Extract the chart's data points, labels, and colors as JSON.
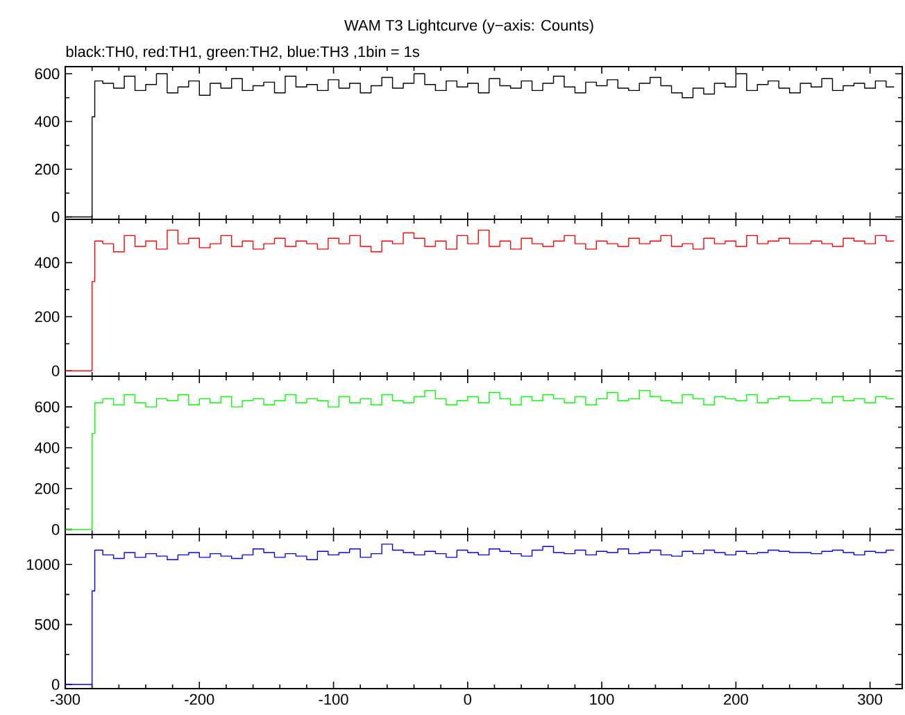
{
  "chart_data": [
    {
      "type": "step",
      "title": "WAM T3 Lightcurve (y−axis: Counts)",
      "subtitle": "black:TH0, red:TH1, green:TH2, blue:TH3 ,1bin = 1s",
      "tick_labels": "y",
      "x": [
        -300,
        -281,
        -280,
        -278,
        -272,
        -264,
        -256,
        -248,
        -240,
        -232,
        -224,
        -216,
        -208,
        -200,
        -192,
        -184,
        -176,
        -168,
        -160,
        -152,
        -144,
        -136,
        -128,
        -120,
        -112,
        -104,
        -96,
        -88,
        -80,
        -72,
        -64,
        -56,
        -48,
        -40,
        -32,
        -24,
        -16,
        -8,
        0,
        8,
        16,
        24,
        32,
        40,
        48,
        56,
        64,
        72,
        80,
        88,
        96,
        104,
        112,
        120,
        128,
        136,
        144,
        152,
        160,
        168,
        176,
        184,
        192,
        200,
        208,
        216,
        224,
        232,
        240,
        248,
        256,
        264,
        272,
        280,
        288,
        296,
        304,
        312,
        318
      ],
      "xlim": [
        -300,
        324
      ],
      "xticks": [
        -300,
        -200,
        -100,
        0,
        100,
        200,
        300
      ],
      "ylim": [
        -10,
        630
      ],
      "yticks": [
        0,
        200,
        400,
        600
      ],
      "series": [
        {
          "color": "#000000",
          "values": [
            0,
            0,
            420,
            570,
            560,
            540,
            590,
            530,
            555,
            600,
            520,
            545,
            570,
            510,
            560,
            540,
            580,
            530,
            550,
            565,
            520,
            590,
            545,
            555,
            530,
            575,
            540,
            560,
            520,
            550,
            585,
            540,
            560,
            600,
            555,
            530,
            570,
            545,
            560,
            520,
            580,
            550,
            540,
            570,
            530,
            560,
            590,
            545,
            520,
            565,
            550,
            575,
            540,
            530,
            560,
            585,
            550,
            520,
            500,
            540,
            515,
            560,
            545,
            600,
            530,
            555,
            570,
            540,
            520,
            560,
            545,
            580,
            530,
            550,
            560,
            540,
            570,
            545,
            545
          ]
        }
      ]
    },
    {
      "type": "step",
      "tick_labels": "y",
      "x": [
        -300,
        -281,
        -280,
        -278,
        -272,
        -264,
        -256,
        -248,
        -240,
        -232,
        -224,
        -216,
        -208,
        -200,
        -192,
        -184,
        -176,
        -168,
        -160,
        -152,
        -144,
        -136,
        -128,
        -120,
        -112,
        -104,
        -96,
        -88,
        -80,
        -72,
        -64,
        -56,
        -48,
        -40,
        -32,
        -24,
        -16,
        -8,
        0,
        8,
        16,
        24,
        32,
        40,
        48,
        56,
        64,
        72,
        80,
        88,
        96,
        104,
        112,
        120,
        128,
        136,
        144,
        152,
        160,
        168,
        176,
        184,
        192,
        200,
        208,
        216,
        224,
        232,
        240,
        248,
        256,
        264,
        272,
        280,
        288,
        296,
        304,
        312,
        318
      ],
      "xlim": [
        -300,
        324
      ],
      "xticks": [
        -300,
        -200,
        -100,
        0,
        100,
        200,
        300
      ],
      "ylim": [
        -20,
        560
      ],
      "yticks": [
        0,
        200,
        400
      ],
      "series": [
        {
          "color": "#ff0000",
          "values": [
            0,
            0,
            330,
            480,
            470,
            440,
            500,
            460,
            480,
            450,
            520,
            470,
            490,
            455,
            470,
            500,
            460,
            480,
            450,
            470,
            490,
            460,
            480,
            470,
            450,
            490,
            470,
            500,
            460,
            440,
            480,
            470,
            510,
            490,
            460,
            480,
            450,
            500,
            470,
            520,
            460,
            480,
            450,
            490,
            470,
            460,
            480,
            500,
            470,
            450,
            480,
            470,
            460,
            490,
            470,
            480,
            500,
            460,
            470,
            450,
            490,
            470,
            480,
            460,
            500,
            470,
            480,
            490,
            470,
            470,
            480,
            470,
            460,
            490,
            480,
            470,
            500,
            480,
            480
          ]
        }
      ]
    },
    {
      "type": "step",
      "tick_labels": "y",
      "x": [
        -300,
        -281,
        -280,
        -278,
        -272,
        -264,
        -256,
        -248,
        -240,
        -232,
        -224,
        -216,
        -208,
        -200,
        -192,
        -184,
        -176,
        -168,
        -160,
        -152,
        -144,
        -136,
        -128,
        -120,
        -112,
        -104,
        -96,
        -88,
        -80,
        -72,
        -64,
        -56,
        -48,
        -40,
        -32,
        -24,
        -16,
        -8,
        0,
        8,
        16,
        24,
        32,
        40,
        48,
        56,
        64,
        72,
        80,
        88,
        96,
        104,
        112,
        120,
        128,
        136,
        144,
        152,
        160,
        168,
        176,
        184,
        192,
        200,
        208,
        216,
        224,
        232,
        240,
        248,
        256,
        264,
        272,
        280,
        288,
        296,
        304,
        312,
        318
      ],
      "xlim": [
        -300,
        324
      ],
      "xticks": [
        -300,
        -200,
        -100,
        0,
        100,
        200,
        300
      ],
      "ylim": [
        -25,
        750
      ],
      "yticks": [
        0,
        200,
        400,
        600
      ],
      "series": [
        {
          "color": "#00ff00",
          "values": [
            0,
            0,
            470,
            620,
            640,
            610,
            660,
            620,
            600,
            640,
            630,
            660,
            610,
            640,
            620,
            650,
            600,
            630,
            640,
            610,
            630,
            660,
            620,
            640,
            630,
            600,
            650,
            620,
            640,
            610,
            660,
            630,
            620,
            650,
            680,
            640,
            610,
            630,
            650,
            620,
            670,
            640,
            610,
            650,
            630,
            660,
            640,
            620,
            650,
            610,
            640,
            670,
            630,
            640,
            680,
            650,
            630,
            620,
            660,
            640,
            610,
            650,
            640,
            630,
            660,
            620,
            640,
            650,
            630,
            630,
            640,
            620,
            650,
            630,
            640,
            620,
            650,
            640,
            640
          ]
        }
      ]
    },
    {
      "type": "step",
      "x": [
        -300,
        -281,
        -280,
        -278,
        -272,
        -264,
        -256,
        -248,
        -240,
        -232,
        -224,
        -216,
        -208,
        -200,
        -192,
        -184,
        -176,
        -168,
        -160,
        -152,
        -144,
        -136,
        -128,
        -120,
        -112,
        -104,
        -96,
        -88,
        -80,
        -72,
        -64,
        -56,
        -48,
        -40,
        -32,
        -24,
        -16,
        -8,
        0,
        8,
        16,
        24,
        32,
        40,
        48,
        56,
        64,
        72,
        80,
        88,
        96,
        104,
        112,
        120,
        128,
        136,
        144,
        152,
        160,
        168,
        176,
        184,
        192,
        200,
        208,
        216,
        224,
        232,
        240,
        248,
        256,
        264,
        272,
        280,
        288,
        296,
        304,
        312,
        318
      ],
      "xlim": [
        -300,
        324
      ],
      "xticks": [
        -300,
        -200,
        -100,
        0,
        100,
        200,
        300
      ],
      "ylim": [
        -35,
        1250
      ],
      "yticks": [
        0,
        500,
        1000
      ],
      "series": [
        {
          "color": "#0000ff",
          "values": [
            0,
            0,
            780,
            1120,
            1080,
            1050,
            1100,
            1060,
            1090,
            1070,
            1040,
            1080,
            1100,
            1060,
            1090,
            1070,
            1050,
            1080,
            1130,
            1100,
            1060,
            1090,
            1070,
            1040,
            1110,
            1080,
            1100,
            1130,
            1060,
            1090,
            1170,
            1120,
            1100,
            1080,
            1110,
            1090,
            1060,
            1120,
            1100,
            1080,
            1130,
            1110,
            1090,
            1070,
            1120,
            1150,
            1100,
            1090,
            1120,
            1080,
            1110,
            1100,
            1130,
            1090,
            1100,
            1120,
            1080,
            1070,
            1110,
            1090,
            1120,
            1100,
            1080,
            1110,
            1090,
            1100,
            1120,
            1110,
            1100,
            1100,
            1090,
            1110,
            1120,
            1100,
            1080,
            1110,
            1100,
            1120,
            1120
          ]
        }
      ]
    }
  ]
}
